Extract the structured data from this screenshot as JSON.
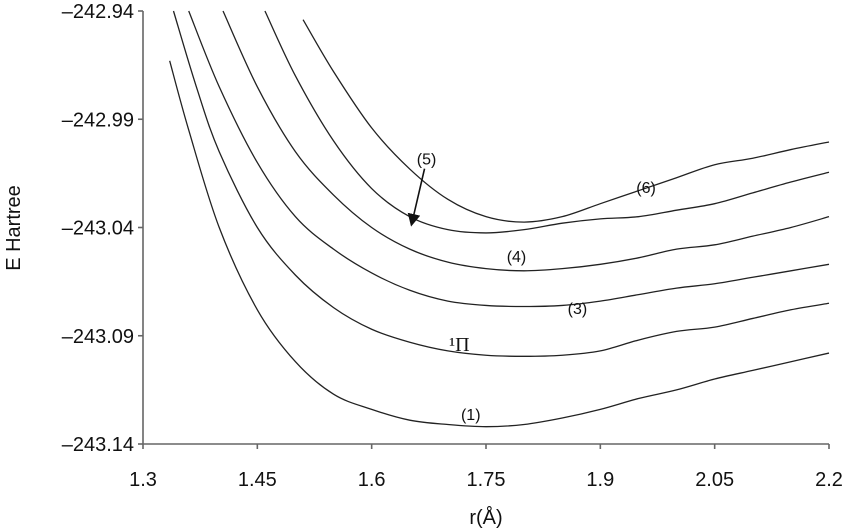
{
  "chart_data": {
    "type": "line",
    "title": "",
    "xlabel": "r(Å)",
    "ylabel": "E Hartree",
    "xlim": [
      1.3,
      2.2
    ],
    "ylim": [
      -243.14,
      -242.94
    ],
    "xticks": [
      "1.3",
      "1.45",
      "1.6",
      "1.75",
      "1.9",
      "2.05",
      "2.2"
    ],
    "yticks": [
      "–242.94",
      "–242.99",
      "–243.04",
      "–243.09",
      "–243.14"
    ],
    "grid": false,
    "legend": null,
    "series": [
      {
        "name": "(1)",
        "points": [
          [
            1.335,
            -242.963
          ],
          [
            1.36,
            -242.995
          ],
          [
            1.4,
            -243.04
          ],
          [
            1.45,
            -243.078
          ],
          [
            1.5,
            -243.102
          ],
          [
            1.55,
            -243.117
          ],
          [
            1.6,
            -243.124
          ],
          [
            1.65,
            -243.129
          ],
          [
            1.7,
            -243.131
          ],
          [
            1.75,
            -243.132
          ],
          [
            1.8,
            -243.131
          ],
          [
            1.85,
            -243.128
          ],
          [
            1.9,
            -243.124
          ],
          [
            1.95,
            -243.119
          ],
          [
            2.0,
            -243.115
          ],
          [
            2.05,
            -243.11
          ],
          [
            2.1,
            -243.106
          ],
          [
            2.15,
            -243.102
          ],
          [
            2.2,
            -243.098
          ]
        ]
      },
      {
        "name": "¹Π",
        "points": [
          [
            1.34,
            -242.94
          ],
          [
            1.37,
            -242.975
          ],
          [
            1.4,
            -243.005
          ],
          [
            1.45,
            -243.04
          ],
          [
            1.5,
            -243.062
          ],
          [
            1.55,
            -243.077
          ],
          [
            1.6,
            -243.087
          ],
          [
            1.65,
            -243.093
          ],
          [
            1.7,
            -243.097
          ],
          [
            1.75,
            -243.099
          ],
          [
            1.8,
            -243.0995
          ],
          [
            1.85,
            -243.099
          ],
          [
            1.9,
            -243.097
          ],
          [
            1.95,
            -243.092
          ],
          [
            2.0,
            -243.088
          ],
          [
            2.05,
            -243.086
          ],
          [
            2.1,
            -243.082
          ],
          [
            2.15,
            -243.078
          ],
          [
            2.2,
            -243.075
          ]
        ]
      },
      {
        "name": "(3)",
        "points": [
          [
            1.36,
            -242.94
          ],
          [
            1.4,
            -242.975
          ],
          [
            1.45,
            -243.01
          ],
          [
            1.5,
            -243.035
          ],
          [
            1.55,
            -243.05
          ],
          [
            1.6,
            -243.061
          ],
          [
            1.65,
            -243.069
          ],
          [
            1.7,
            -243.074
          ],
          [
            1.75,
            -243.076
          ],
          [
            1.8,
            -243.0765
          ],
          [
            1.85,
            -243.076
          ],
          [
            1.9,
            -243.074
          ],
          [
            1.95,
            -243.071
          ],
          [
            2.0,
            -243.068
          ],
          [
            2.05,
            -243.066
          ],
          [
            2.1,
            -243.063
          ],
          [
            2.15,
            -243.06
          ],
          [
            2.2,
            -243.057
          ]
        ]
      },
      {
        "name": "(4)",
        "points": [
          [
            1.405,
            -242.94
          ],
          [
            1.45,
            -242.975
          ],
          [
            1.5,
            -243.005
          ],
          [
            1.55,
            -243.025
          ],
          [
            1.6,
            -243.04
          ],
          [
            1.65,
            -243.05
          ],
          [
            1.7,
            -243.056
          ],
          [
            1.75,
            -243.059
          ],
          [
            1.8,
            -243.06
          ],
          [
            1.85,
            -243.059
          ],
          [
            1.9,
            -243.057
          ],
          [
            1.95,
            -243.054
          ],
          [
            2.0,
            -243.05
          ],
          [
            2.05,
            -243.048
          ],
          [
            2.1,
            -243.044
          ],
          [
            2.15,
            -243.04
          ],
          [
            2.2,
            -243.035
          ]
        ]
      },
      {
        "name": "(5)",
        "points": [
          [
            1.46,
            -242.94
          ],
          [
            1.5,
            -242.97
          ],
          [
            1.55,
            -243.0
          ],
          [
            1.6,
            -243.022
          ],
          [
            1.65,
            -243.035
          ],
          [
            1.7,
            -243.041
          ],
          [
            1.75,
            -243.0425
          ],
          [
            1.8,
            -243.041
          ],
          [
            1.85,
            -243.038
          ],
          [
            1.9,
            -243.036
          ],
          [
            1.95,
            -243.035
          ],
          [
            2.0,
            -243.032
          ],
          [
            2.05,
            -243.029
          ],
          [
            2.1,
            -243.024
          ],
          [
            2.15,
            -243.019
          ],
          [
            2.2,
            -243.0145
          ]
        ]
      },
      {
        "name": "(6)",
        "points": [
          [
            1.51,
            -242.944
          ],
          [
            1.55,
            -242.968
          ],
          [
            1.6,
            -242.994
          ],
          [
            1.65,
            -243.013
          ],
          [
            1.7,
            -243.027
          ],
          [
            1.75,
            -243.035
          ],
          [
            1.8,
            -243.0375
          ],
          [
            1.85,
            -243.035
          ],
          [
            1.9,
            -243.029
          ],
          [
            1.95,
            -243.023
          ],
          [
            2.0,
            -243.017
          ],
          [
            2.05,
            -243.011
          ],
          [
            2.1,
            -243.008
          ],
          [
            2.15,
            -243.004
          ],
          [
            2.2,
            -243.0005
          ]
        ]
      }
    ],
    "annotations": [
      {
        "text": "(5)",
        "x": 1.672,
        "y": -243.011,
        "arrow_to": [
          1.65,
          -243.04
        ]
      },
      {
        "text": "(6)",
        "x": 1.96,
        "y": -243.024
      },
      {
        "text": "(4)",
        "x": 1.79,
        "y": -243.056
      },
      {
        "text": "(3)",
        "x": 1.87,
        "y": -243.08
      },
      {
        "text": "¹Π",
        "x": 1.715,
        "y": -243.097
      },
      {
        "text": "(1)",
        "x": 1.73,
        "y": -243.129
      }
    ]
  }
}
